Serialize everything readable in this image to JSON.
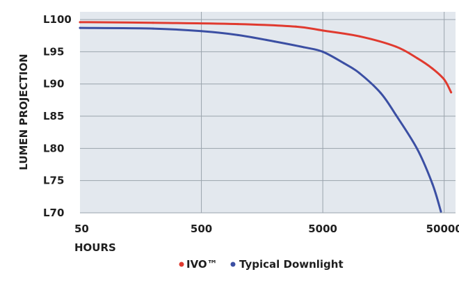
{
  "chart_data": {
    "type": "line",
    "xlabel": "HOURS",
    "ylabel": "LUMEN PROJECTION",
    "x_scale": "log",
    "xlim": [
      50,
      62000
    ],
    "ylim": [
      70,
      101.2
    ],
    "grid": true,
    "plot_background": "#e3e8ee",
    "grid_color": "#9aa3ac",
    "x_ticks": [
      {
        "value": 50,
        "label": "50"
      },
      {
        "value": 500,
        "label": "500"
      },
      {
        "value": 5000,
        "label": "5000"
      },
      {
        "value": 50000,
        "label": "50000"
      }
    ],
    "y_ticks": [
      {
        "value": 100,
        "label": "L100"
      },
      {
        "value": 95,
        "label": "L95"
      },
      {
        "value": 90,
        "label": "L90"
      },
      {
        "value": 85,
        "label": "L85"
      },
      {
        "value": 80,
        "label": "L80"
      },
      {
        "value": 75,
        "label": "L75"
      },
      {
        "value": 70,
        "label": "L70"
      }
    ],
    "legend_position": "bottom",
    "series": [
      {
        "name": "IVO™",
        "color": "#e03a2f",
        "x": [
          50,
          200,
          1000,
          3000,
          5000,
          10000,
          20000,
          30000,
          40000,
          50000,
          57000
        ],
        "y": [
          99.6,
          99.5,
          99.3,
          98.9,
          98.3,
          97.4,
          95.8,
          94.0,
          92.4,
          90.7,
          88.7
        ]
      },
      {
        "name": "Typical Downlight",
        "color": "#3b4fa3",
        "x": [
          50,
          200,
          500,
          1000,
          2000,
          3500,
          5000,
          7500,
          10000,
          15000,
          20000,
          30000,
          40000,
          47000
        ],
        "y": [
          98.7,
          98.6,
          98.2,
          97.6,
          96.6,
          95.7,
          95.0,
          93.2,
          91.7,
          88.6,
          85.2,
          79.9,
          74.5,
          70.2
        ]
      }
    ]
  }
}
